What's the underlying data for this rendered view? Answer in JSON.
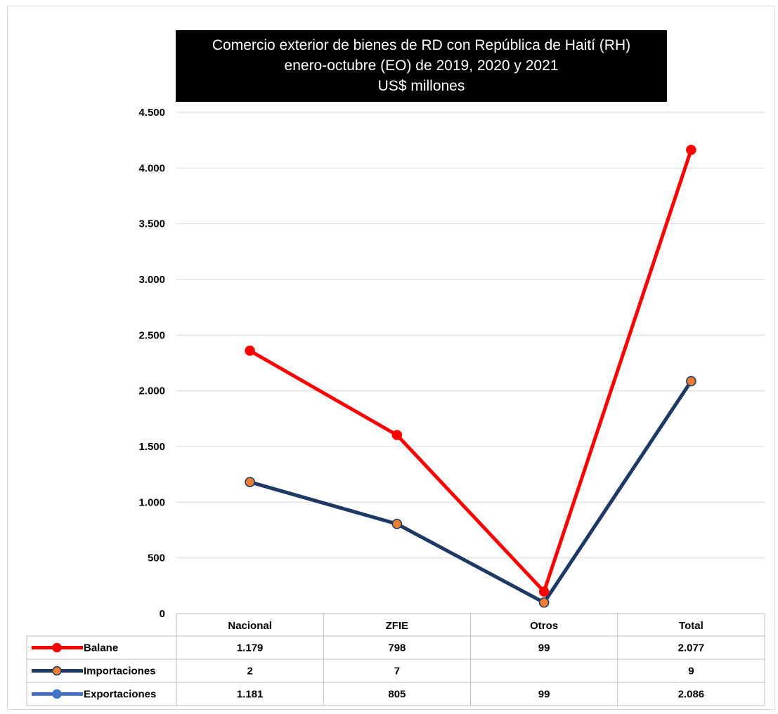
{
  "chart_data": {
    "type": "line",
    "title_lines": [
      "Comercio exterior de bienes de RD con República de Haití (RH)",
      "enero-octubre (EO) de 2019, 2020 y 2021",
      "US$ millones"
    ],
    "categories": [
      "Nacional",
      "ZFIE",
      "Otros",
      "Total"
    ],
    "ylim": [
      0,
      4500
    ],
    "yticks": [
      0,
      500,
      1000,
      1500,
      2000,
      2500,
      3000,
      3500,
      4000,
      4500
    ],
    "ytick_labels": [
      "0",
      "500",
      "1.000",
      "1.500",
      "2.000",
      "2.500",
      "3.000",
      "3.500",
      "4.000",
      "4.500"
    ],
    "grid": true,
    "legend_placement": "data-table",
    "series": [
      {
        "name": "Balane",
        "color": "#ff0000",
        "marker_color": "#ff0000",
        "plot_values": [
          2360,
          1603,
          198,
          4163
        ],
        "table_values": [
          "1.179",
          "798",
          "99",
          "2.077"
        ]
      },
      {
        "name": "Importaciones",
        "color": "#1f3864",
        "marker_color": "#ed7d31",
        "plot_values": [
          1181,
          805,
          99,
          2086
        ],
        "table_values": [
          "2",
          "7",
          "",
          "9"
        ]
      },
      {
        "name": "Exportaciones",
        "color": "#4472c4",
        "marker_color": "#4472c4",
        "plot_values": [
          1181,
          805,
          99,
          2086
        ],
        "table_values": [
          "1.181",
          "805",
          "99",
          "2.086"
        ]
      }
    ]
  }
}
